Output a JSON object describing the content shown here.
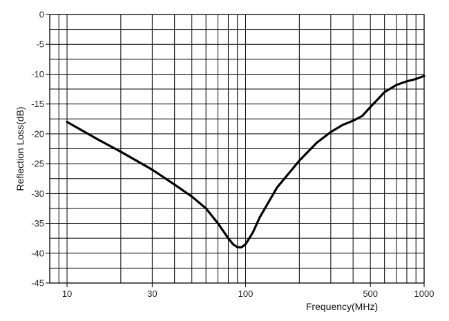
{
  "chart_data": {
    "type": "line",
    "title": "",
    "xlabel": "Frequency(MHz)",
    "ylabel": "Reflection Loss(dB)",
    "xscale": "log",
    "xlim": [
      8,
      1000
    ],
    "ylim": [
      -45,
      0
    ],
    "grid": true,
    "x_tick_labels": [
      "10",
      "30",
      "100",
      "500",
      "1000"
    ],
    "y_tick_labels": [
      "0",
      "-5",
      "-10",
      "-15",
      "-20",
      "-25",
      "-30",
      "-35",
      "-40",
      "-45"
    ],
    "series": [
      {
        "x": [
          10,
          15,
          20,
          30,
          40,
          50,
          60,
          70,
          80,
          85,
          90,
          95,
          100,
          110,
          120,
          150,
          200,
          250,
          300,
          350,
          400,
          450,
          500,
          550,
          600,
          700,
          800,
          900,
          1000
        ],
        "y": [
          -18,
          -21,
          -23,
          -26,
          -28.5,
          -30.5,
          -32.5,
          -35,
          -37.5,
          -38.5,
          -39,
          -39,
          -38.5,
          -36.5,
          -34,
          -29,
          -24.5,
          -21.5,
          -19.7,
          -18.5,
          -17.8,
          -17,
          -15.5,
          -14.2,
          -13,
          -11.8,
          -11.2,
          -10.8,
          -10.3
        ]
      }
    ]
  }
}
